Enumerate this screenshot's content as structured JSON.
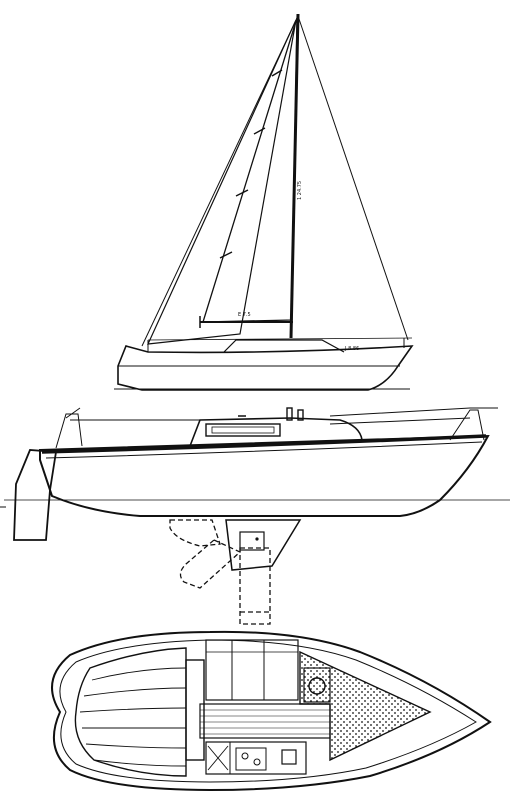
{
  "title": "Sailboat drawing: sail plan, hull profile and deck/accommodation plan",
  "labels": {
    "mast_height": "1 24.75",
    "boom_label": "E 7.5",
    "stay_label": "J 8.86"
  },
  "colors": {
    "ink": "#111111",
    "paper": "#ffffff"
  }
}
